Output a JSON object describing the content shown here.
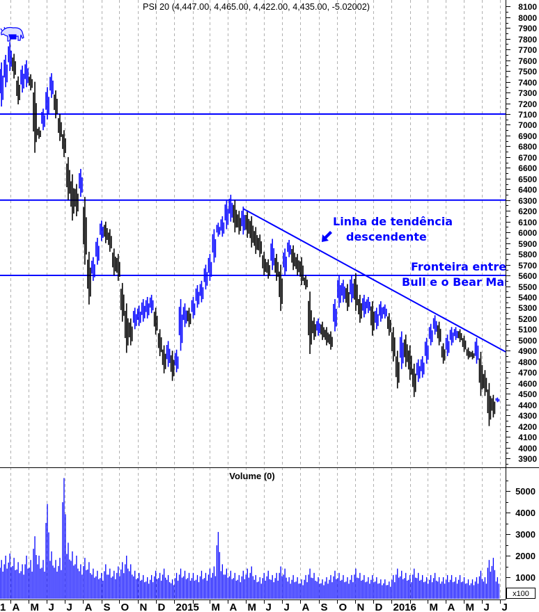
{
  "chart_data": {
    "type": "ohlc",
    "title": "PSI 20 (4,447.00, 4,465.00, 4,422.00, 4,435.00, -5.02002)",
    "price_axis": {
      "min": 3900,
      "max": 8100,
      "step": 100,
      "side": "right"
    },
    "volume_panel": {
      "title": "Volume (0)",
      "min": 0,
      "max": 5000,
      "ticks": [
        1000,
        2000,
        3000,
        4000,
        5000
      ],
      "unit_label": "x100"
    },
    "grid": {
      "vertical": "dashed monthly",
      "horizontal": false
    },
    "colors": {
      "up": "#0000ff",
      "down": "#000000",
      "lines": "#0000ff",
      "annotation": "#0000ff",
      "volume": "#0000ff",
      "grid": "#b0b0b0"
    },
    "x_axis": [
      {
        "label": "1",
        "date": "2014-03-01"
      },
      {
        "label": "A",
        "date": "2014-04-01"
      },
      {
        "label": "M",
        "date": "2014-05-01"
      },
      {
        "label": "J",
        "date": "2014-06-01"
      },
      {
        "label": "J",
        "date": "2014-07-01"
      },
      {
        "label": "A",
        "date": "2014-08-01"
      },
      {
        "label": "S",
        "date": "2014-09-01"
      },
      {
        "label": "O",
        "date": "2014-10-01"
      },
      {
        "label": "N",
        "date": "2014-11-01"
      },
      {
        "label": "D",
        "date": "2014-12-01"
      },
      {
        "label": "2015",
        "date": "2015-01-01"
      },
      {
        "label": "",
        "date": "2015-02-01"
      },
      {
        "label": "M",
        "date": "2015-03-01"
      },
      {
        "label": "A",
        "date": "2015-04-01"
      },
      {
        "label": "M",
        "date": "2015-05-01"
      },
      {
        "label": "J",
        "date": "2015-06-01"
      },
      {
        "label": "J",
        "date": "2015-07-01"
      },
      {
        "label": "A",
        "date": "2015-08-01"
      },
      {
        "label": "S",
        "date": "2015-09-01"
      },
      {
        "label": "O",
        "date": "2015-10-01"
      },
      {
        "label": "N",
        "date": "2015-11-01"
      },
      {
        "label": "D",
        "date": "2015-12-01"
      },
      {
        "label": "2016",
        "date": "2016-01-01"
      },
      {
        "label": "",
        "date": "2016-02-01"
      },
      {
        "label": "M",
        "date": "2016-03-01"
      },
      {
        "label": "A",
        "date": "2016-04-01"
      },
      {
        "label": "M",
        "date": "2016-05-01"
      },
      {
        "label": "J",
        "date": "2016-06-01"
      },
      {
        "label": "J",
        "date": "2016-07-01"
      }
    ],
    "bar_columns": [
      "week",
      "high",
      "low",
      "volume"
    ],
    "bars": [
      [
        "2014-03-17",
        7580,
        7170,
        1800
      ],
      [
        "2014-03-24",
        7650,
        7350,
        2000
      ],
      [
        "2014-03-31",
        7770,
        7500,
        2100
      ],
      [
        "2014-04-07",
        7660,
        7430,
        1900
      ],
      [
        "2014-04-14",
        7450,
        7190,
        1700
      ],
      [
        "2014-04-21",
        7550,
        7300,
        1600
      ],
      [
        "2014-04-28",
        7600,
        7350,
        2000
      ],
      [
        "2014-05-05",
        7470,
        7320,
        1800
      ],
      [
        "2014-05-12",
        7400,
        6740,
        2900
      ],
      [
        "2014-05-19",
        6980,
        6870,
        2000
      ],
      [
        "2014-05-26",
        7150,
        6950,
        1800
      ],
      [
        "2014-06-02",
        7350,
        7050,
        4400
      ],
      [
        "2014-06-09",
        7480,
        7250,
        2200
      ],
      [
        "2014-06-16",
        7320,
        7060,
        1800
      ],
      [
        "2014-06-23",
        7100,
        6850,
        1900
      ],
      [
        "2014-06-30",
        6950,
        6700,
        5600
      ],
      [
        "2014-07-07",
        6700,
        6300,
        2600
      ],
      [
        "2014-07-14",
        6540,
        6110,
        2200
      ],
      [
        "2014-07-21",
        6450,
        6150,
        2000
      ],
      [
        "2014-07-28",
        6590,
        6330,
        1600
      ],
      [
        "2014-08-04",
        6330,
        5700,
        1900
      ],
      [
        "2014-08-11",
        5820,
        5330,
        1700
      ],
      [
        "2014-08-18",
        5770,
        5550,
        1400
      ],
      [
        "2014-08-25",
        5950,
        5700,
        1300
      ],
      [
        "2014-09-01",
        6110,
        5920,
        1200
      ],
      [
        "2014-09-08",
        6100,
        5900,
        1600
      ],
      [
        "2014-09-15",
        6030,
        5820,
        1400
      ],
      [
        "2014-09-22",
        5850,
        5600,
        1300
      ],
      [
        "2014-09-29",
        5800,
        5550,
        1500
      ],
      [
        "2014-10-06",
        5530,
        5170,
        1700
      ],
      [
        "2014-10-13",
        5340,
        4880,
        2000
      ],
      [
        "2014-10-20",
        5200,
        4950,
        1600
      ],
      [
        "2014-10-27",
        5300,
        5100,
        1300
      ],
      [
        "2014-11-03",
        5320,
        5130,
        1200
      ],
      [
        "2014-11-10",
        5380,
        5170,
        1100
      ],
      [
        "2014-11-17",
        5400,
        5200,
        1000
      ],
      [
        "2014-11-24",
        5420,
        5250,
        1100
      ],
      [
        "2014-12-01",
        5300,
        5050,
        1300
      ],
      [
        "2014-12-08",
        5100,
        4850,
        1200
      ],
      [
        "2014-12-15",
        4950,
        4690,
        1400
      ],
      [
        "2014-12-22",
        4990,
        4750,
        1100
      ],
      [
        "2014-12-29",
        4900,
        4620,
        900
      ],
      [
        "2015-01-05",
        4910,
        4700,
        1200
      ],
      [
        "2015-01-12",
        5380,
        4900,
        1400
      ],
      [
        "2015-01-19",
        5340,
        5120,
        1300
      ],
      [
        "2015-01-26",
        5300,
        5120,
        1200
      ],
      [
        "2015-02-02",
        5400,
        5200,
        1200
      ],
      [
        "2015-02-09",
        5510,
        5300,
        1100
      ],
      [
        "2015-02-16",
        5550,
        5350,
        1300
      ],
      [
        "2015-02-23",
        5700,
        5470,
        1200
      ],
      [
        "2015-03-02",
        5800,
        5550,
        1400
      ],
      [
        "2015-03-09",
        6030,
        5720,
        1500
      ],
      [
        "2015-03-16",
        6090,
        5960,
        3100
      ],
      [
        "2015-03-23",
        6150,
        5960,
        1600
      ],
      [
        "2015-03-30",
        6300,
        6030,
        1400
      ],
      [
        "2015-04-06",
        6350,
        6100,
        1300
      ],
      [
        "2015-04-13",
        6300,
        6000,
        1200
      ],
      [
        "2015-04-20",
        6200,
        5980,
        1100
      ],
      [
        "2015-04-27",
        6240,
        5980,
        1300
      ],
      [
        "2015-05-04",
        6200,
        5950,
        1400
      ],
      [
        "2015-05-11",
        6150,
        5860,
        1500
      ],
      [
        "2015-05-18",
        6050,
        5800,
        1100
      ],
      [
        "2015-05-25",
        5980,
        5770,
        1000
      ],
      [
        "2015-06-01",
        5820,
        5600,
        1200
      ],
      [
        "2015-06-08",
        5750,
        5570,
        1300
      ],
      [
        "2015-06-15",
        5940,
        5650,
        1100
      ],
      [
        "2015-06-22",
        5800,
        5550,
        1200
      ],
      [
        "2015-06-29",
        5700,
        5270,
        1500
      ],
      [
        "2015-07-06",
        5850,
        5600,
        1400
      ],
      [
        "2015-07-13",
        5930,
        5770,
        1000
      ],
      [
        "2015-07-20",
        5880,
        5650,
        1100
      ],
      [
        "2015-07-27",
        5800,
        5600,
        1000
      ],
      [
        "2015-08-03",
        5770,
        5510,
        900
      ],
      [
        "2015-08-10",
        5600,
        5470,
        1100
      ],
      [
        "2015-08-17",
        5450,
        4870,
        1400
      ],
      [
        "2015-08-24",
        5210,
        5000,
        1200
      ],
      [
        "2015-08-31",
        5200,
        5040,
        1000
      ],
      [
        "2015-09-07",
        5170,
        5000,
        900
      ],
      [
        "2015-09-14",
        5120,
        4950,
        1000
      ],
      [
        "2015-09-21",
        5080,
        4910,
        1100
      ],
      [
        "2015-09-28",
        5380,
        5080,
        1300
      ],
      [
        "2015-10-05",
        5600,
        5300,
        1200
      ],
      [
        "2015-10-12",
        5560,
        5350,
        1100
      ],
      [
        "2015-10-19",
        5520,
        5270,
        1000
      ],
      [
        "2015-10-26",
        5600,
        5350,
        1100
      ],
      [
        "2015-11-02",
        5620,
        5270,
        1400
      ],
      [
        "2015-11-09",
        5420,
        5160,
        1200
      ],
      [
        "2015-11-16",
        5420,
        5210,
        1100
      ],
      [
        "2015-11-23",
        5400,
        5250,
        1000
      ],
      [
        "2015-11-30",
        5360,
        5040,
        1100
      ],
      [
        "2015-12-07",
        5300,
        5100,
        1000
      ],
      [
        "2015-12-14",
        5360,
        5170,
        900
      ],
      [
        "2015-12-21",
        5330,
        5200,
        900
      ],
      [
        "2015-12-28",
        5250,
        5040,
        800
      ],
      [
        "2016-01-04",
        5120,
        4800,
        1100
      ],
      [
        "2016-01-11",
        4900,
        4550,
        1400
      ],
      [
        "2016-01-18",
        5080,
        4730,
        1300
      ],
      [
        "2016-01-25",
        5050,
        4750,
        1200
      ],
      [
        "2016-02-01",
        4950,
        4630,
        1100
      ],
      [
        "2016-02-08",
        4780,
        4470,
        1400
      ],
      [
        "2016-02-15",
        4820,
        4610,
        1200
      ],
      [
        "2016-02-22",
        4850,
        4650,
        1100
      ],
      [
        "2016-02-29",
        5020,
        4780,
        1000
      ],
      [
        "2016-03-07",
        5150,
        4950,
        1100
      ],
      [
        "2016-03-14",
        5230,
        5050,
        1200
      ],
      [
        "2016-03-21",
        5170,
        4950,
        1000
      ],
      [
        "2016-03-28",
        4970,
        4780,
        1000
      ],
      [
        "2016-04-04",
        5050,
        4850,
        1100
      ],
      [
        "2016-04-11",
        5120,
        4950,
        1100
      ],
      [
        "2016-04-18",
        5120,
        5000,
        1000
      ],
      [
        "2016-04-25",
        5100,
        4980,
        1100
      ],
      [
        "2016-05-02",
        5040,
        4890,
        1000
      ],
      [
        "2016-05-09",
        4930,
        4820,
        900
      ],
      [
        "2016-05-16",
        4900,
        4820,
        900
      ],
      [
        "2016-05-23",
        5020,
        4780,
        1000
      ],
      [
        "2016-05-30",
        4890,
        4480,
        1300
      ],
      [
        "2016-06-06",
        4720,
        4480,
        1000
      ],
      [
        "2016-06-13",
        4600,
        4200,
        1800
      ],
      [
        "2016-06-20",
        4490,
        4280,
        1900
      ],
      [
        "2016-06-27",
        4465,
        4422,
        1000
      ]
    ],
    "horizontal_lines": [
      7100,
      6300,
      5600
    ],
    "trendline": [
      [
        "2015-04-27",
        6220
      ],
      [
        "2016-07-11",
        4890
      ]
    ],
    "annotations": {
      "trend_line1": "Linha de tendência",
      "trend_line2": "descendente",
      "boundary_line1": "Fronteira entre",
      "boundary_line2": "Bull e o Bear Mar"
    },
    "icons": {
      "logo": "bull-icon",
      "pointer": "arrow-down-left-icon"
    }
  }
}
